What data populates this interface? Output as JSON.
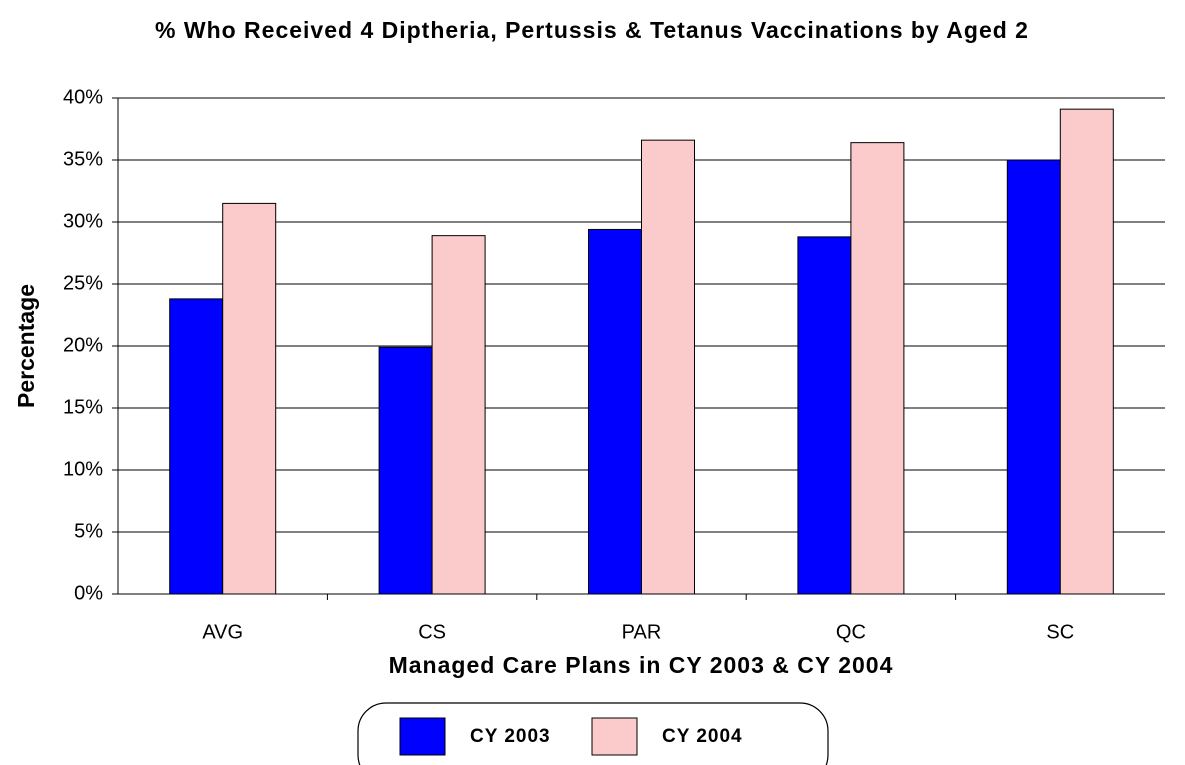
{
  "chart_data": {
    "type": "bar",
    "title": "% Who Received 4 Diptheria, Pertussis & Tetanus Vaccinations by Aged 2",
    "x_label": "Managed Care Plans in CY 2003 & CY 2004",
    "y_label": "Percentage",
    "categories": [
      "AVG",
      "CS",
      "PAR",
      "QC",
      "SC"
    ],
    "series": [
      {
        "name": "CY 2003",
        "color": "#0000ff",
        "values": [
          23.8,
          19.9,
          29.4,
          28.8,
          35.0
        ]
      },
      {
        "name": "CY 2004",
        "color": "#fbcaca",
        "values": [
          31.5,
          28.9,
          36.6,
          36.4,
          39.1
        ]
      }
    ],
    "ylim": [
      0,
      40
    ],
    "yticks": [
      {
        "value": 0,
        "label": "0%"
      },
      {
        "value": 5,
        "label": "5%"
      },
      {
        "value": 10,
        "label": "10%"
      },
      {
        "value": 15,
        "label": "15%"
      },
      {
        "value": 20,
        "label": "20%"
      },
      {
        "value": 25,
        "label": "25%"
      },
      {
        "value": 30,
        "label": "30%"
      },
      {
        "value": 35,
        "label": "35%"
      },
      {
        "value": 40,
        "label": "40%"
      }
    ],
    "grid": true,
    "legend": "bottom"
  }
}
